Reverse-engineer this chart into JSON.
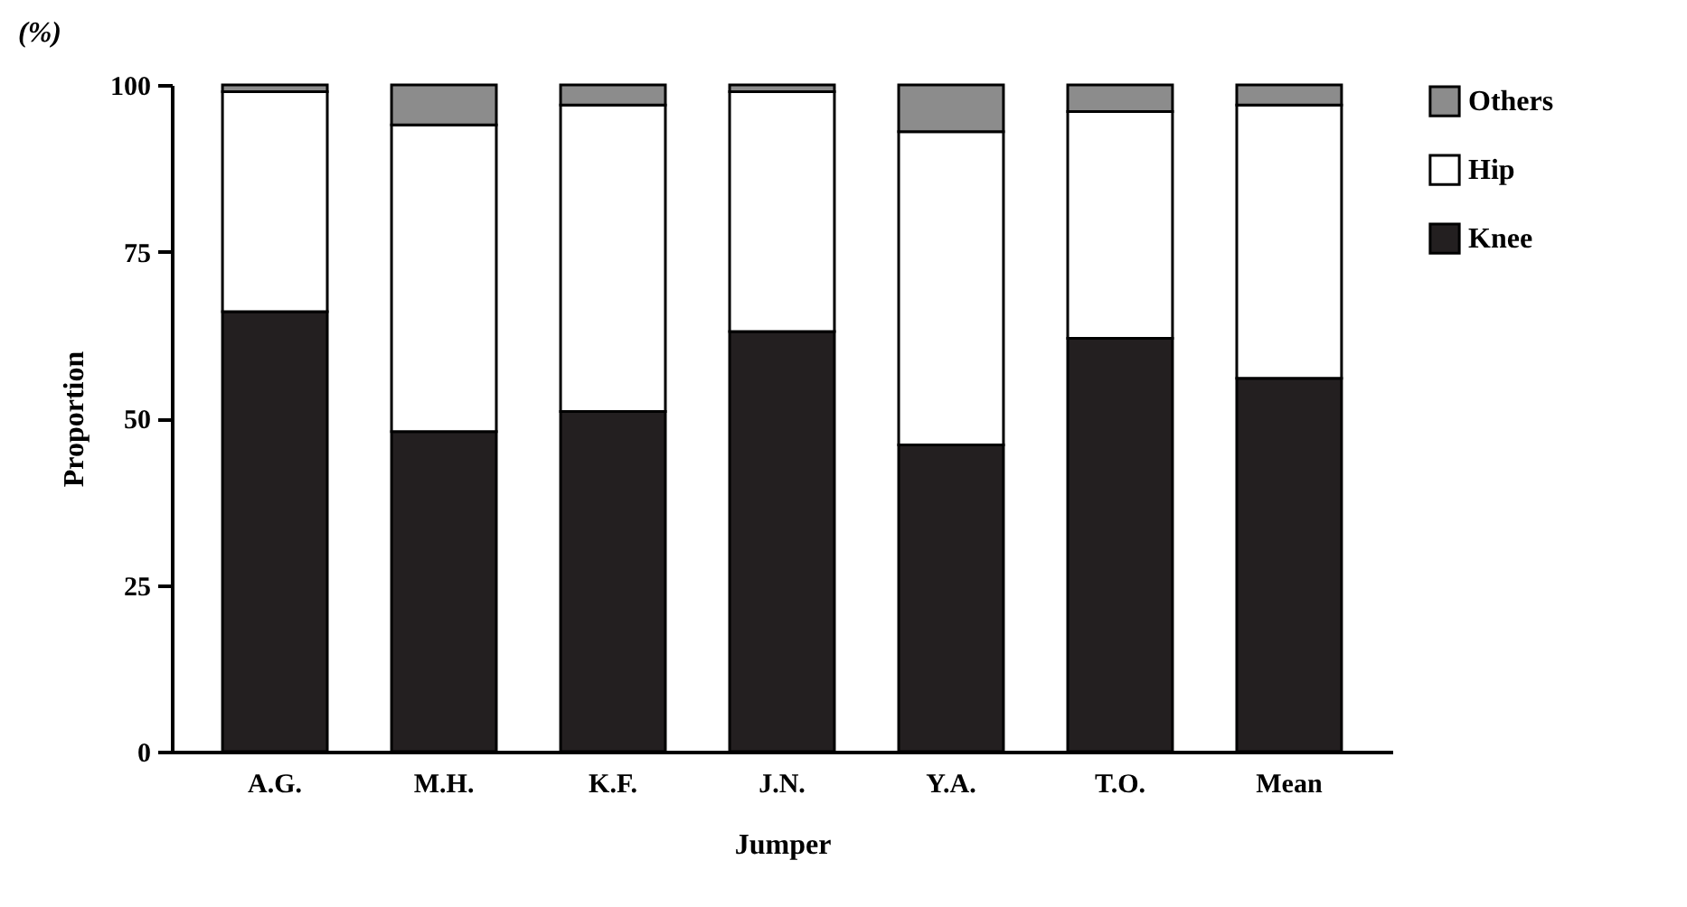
{
  "chart_data": {
    "type": "bar",
    "stacked": true,
    "xlabel": "Jumper",
    "ylabel": "Proportion",
    "annotations": [
      "(%)"
    ],
    "categories": [
      "A.G.",
      "M.H.",
      "K.F.",
      "J.N.",
      "Y.A.",
      "T.O.",
      "Mean"
    ],
    "series": [
      {
        "name": "Knee",
        "color": "#231f20",
        "values": [
          66,
          48,
          51,
          63,
          46,
          62,
          56
        ]
      },
      {
        "name": "Hip",
        "color": "#ffffff",
        "values": [
          33,
          46,
          46,
          36,
          47,
          34,
          41
        ]
      },
      {
        "name": "Others",
        "color": "#8c8c8c",
        "values": [
          1,
          6,
          3,
          1,
          7,
          4,
          3
        ]
      }
    ],
    "ylim": [
      0,
      100
    ],
    "yticks": [
      0,
      25,
      50,
      75,
      100
    ],
    "legend": "right",
    "grid": false
  }
}
